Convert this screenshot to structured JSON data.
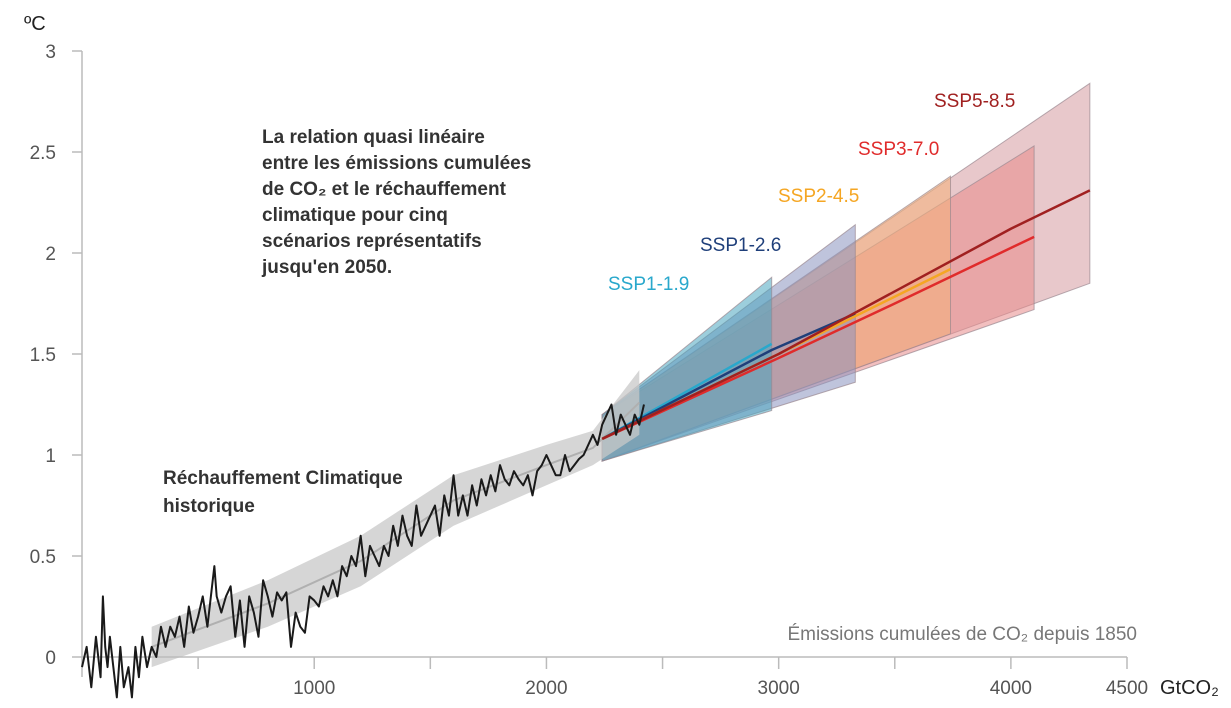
{
  "chart_data": {
    "type": "line",
    "title": "La relation quasi linéaire entre les émissions cumulées de CO₂ et le réchauffement climatique pour cinq scénarios représentatifs jusqu'en 2050.",
    "annotation_lines": [
      "La relation quasi linéaire",
      "entre les émissions cumulées",
      "de CO₂ et le réchauffement",
      "climatique pour cinq",
      "scénarios représentatifs",
      "jusqu'en 2050."
    ],
    "y_unit": "ºC",
    "x_unit": "GtCO₂",
    "xlabel": "Émissions cumulées de CO₂ depuis 1850",
    "xlim": [
      0,
      4500
    ],
    "ylim": [
      0,
      3
    ],
    "x_ticks": [
      {
        "value": 1000,
        "label": "1000"
      },
      {
        "value": 2000,
        "label": "2000"
      },
      {
        "value": 3000,
        "label": "3000"
      },
      {
        "value": 4000,
        "label": "4000"
      },
      {
        "value": 4500,
        "label": "4500"
      }
    ],
    "x_minor_ticks": [
      500,
      1500,
      2500,
      3500
    ],
    "y_ticks": [
      {
        "value": 0,
        "label": "0"
      },
      {
        "value": 0.5,
        "label": "0.5"
      },
      {
        "value": 1,
        "label": "1"
      },
      {
        "value": 1.5,
        "label": "1.5"
      },
      {
        "value": 2,
        "label": "2"
      },
      {
        "value": 2.5,
        "label": "2.5"
      },
      {
        "value": 3,
        "label": "3"
      }
    ],
    "historical": {
      "label_lines": [
        "Réchauffement Climatique",
        "historique"
      ],
      "color": "#1a1a1a",
      "band_color": "#c8c8c8",
      "x": [
        0,
        20,
        40,
        60,
        80,
        90,
        100,
        110,
        120,
        135,
        150,
        165,
        180,
        200,
        215,
        230,
        245,
        260,
        280,
        300,
        320,
        340,
        360,
        380,
        400,
        420,
        440,
        460,
        480,
        500,
        520,
        540,
        560,
        570,
        580,
        600,
        620,
        640,
        660,
        680,
        700,
        720,
        740,
        760,
        780,
        800,
        820,
        840,
        860,
        880,
        900,
        920,
        940,
        960,
        980,
        1000,
        1020,
        1040,
        1060,
        1080,
        1100,
        1120,
        1140,
        1160,
        1180,
        1200,
        1220,
        1240,
        1260,
        1280,
        1300,
        1320,
        1340,
        1360,
        1380,
        1400,
        1420,
        1440,
        1460,
        1480,
        1500,
        1520,
        1540,
        1560,
        1580,
        1600,
        1620,
        1640,
        1660,
        1680,
        1700,
        1720,
        1740,
        1760,
        1780,
        1800,
        1820,
        1840,
        1860,
        1880,
        1900,
        1920,
        1940,
        1960,
        1980,
        2000,
        2020,
        2040,
        2060,
        2080,
        2100,
        2120,
        2140,
        2160,
        2180,
        2200,
        2220,
        2240,
        2260,
        2280,
        2300,
        2320,
        2340,
        2360,
        2380,
        2400,
        2420
      ],
      "y": [
        -0.05,
        0.05,
        -0.15,
        0.1,
        -0.1,
        0.3,
        0.05,
        -0.05,
        0.1,
        -0.05,
        -0.2,
        0.05,
        -0.15,
        -0.05,
        -0.2,
        0.05,
        -0.1,
        0.1,
        -0.05,
        0.05,
        0.0,
        0.15,
        0.05,
        0.15,
        0.1,
        0.2,
        0.05,
        0.25,
        0.12,
        0.2,
        0.3,
        0.15,
        0.35,
        0.45,
        0.3,
        0.22,
        0.3,
        0.35,
        0.1,
        0.28,
        0.05,
        0.3,
        0.22,
        0.1,
        0.38,
        0.3,
        0.2,
        0.32,
        0.28,
        0.32,
        0.05,
        0.22,
        0.15,
        0.12,
        0.3,
        0.28,
        0.25,
        0.35,
        0.3,
        0.38,
        0.3,
        0.45,
        0.4,
        0.5,
        0.45,
        0.6,
        0.4,
        0.55,
        0.5,
        0.45,
        0.55,
        0.5,
        0.65,
        0.55,
        0.7,
        0.6,
        0.55,
        0.75,
        0.6,
        0.65,
        0.7,
        0.75,
        0.6,
        0.8,
        0.7,
        0.9,
        0.7,
        0.8,
        0.7,
        0.85,
        0.75,
        0.88,
        0.8,
        0.9,
        0.82,
        0.95,
        0.88,
        0.85,
        0.92,
        0.88,
        0.85,
        0.9,
        0.8,
        0.92,
        0.95,
        1.0,
        0.95,
        0.9,
        0.9,
        1.0,
        0.92,
        0.95,
        0.98,
        1.0,
        1.05,
        1.1,
        1.05,
        1.15,
        1.2,
        1.25,
        1.1,
        1.2,
        1.15,
        1.1,
        1.2,
        1.15,
        1.25
      ],
      "band_x": [
        300,
        800,
        1200,
        1600,
        2000,
        2200,
        2400
      ],
      "band_lower": [
        -0.05,
        0.15,
        0.35,
        0.65,
        0.85,
        0.95,
        1.1
      ],
      "band_upper": [
        0.15,
        0.38,
        0.6,
        0.9,
        1.05,
        1.12,
        1.42
      ]
    },
    "series": [
      {
        "name": "SSP5-8.5",
        "color": "#a02020",
        "fill": "#d69aa0",
        "x": [
          2240,
          3000,
          4000,
          4340
        ],
        "y": [
          1.08,
          1.5,
          2.12,
          2.31
        ],
        "band_x": [
          2240,
          4340
        ],
        "band_lower": [
          0.97,
          1.85
        ],
        "band_upper": [
          1.2,
          2.84
        ]
      },
      {
        "name": "SSP3-7.0",
        "color": "#e02b2b",
        "fill": "#e88a8a",
        "x": [
          2240,
          3000,
          3500,
          4100
        ],
        "y": [
          1.08,
          1.48,
          1.75,
          2.08
        ],
        "band_x": [
          2240,
          4100
        ],
        "band_lower": [
          0.97,
          1.72
        ],
        "band_upper": [
          1.2,
          2.53
        ]
      },
      {
        "name": "SSP2-4.5",
        "color": "#f5a623",
        "fill": "#f4b07a",
        "x": [
          2240,
          3000,
          3740
        ],
        "y": [
          1.08,
          1.5,
          1.92
        ],
        "band_x": [
          2240,
          3740
        ],
        "band_lower": [
          0.97,
          1.6
        ],
        "band_upper": [
          1.2,
          2.38
        ]
      },
      {
        "name": "SSP1-2.6",
        "color": "#1f3f7a",
        "fill": "#8a93c0",
        "x": [
          2240,
          2970,
          3330
        ],
        "y": [
          1.08,
          1.52,
          1.7
        ],
        "band_x": [
          2240,
          3330
        ],
        "band_lower": [
          0.97,
          1.36
        ],
        "band_upper": [
          1.2,
          2.14
        ]
      },
      {
        "name": "SSP1-1.9",
        "color": "#29a8cc",
        "fill": "#4aa6c0",
        "x": [
          2240,
          2970
        ],
        "y": [
          1.08,
          1.55
        ],
        "band_x": [
          2240,
          2970
        ],
        "band_lower": [
          0.97,
          1.22
        ],
        "band_upper": [
          1.2,
          1.88
        ]
      }
    ]
  }
}
